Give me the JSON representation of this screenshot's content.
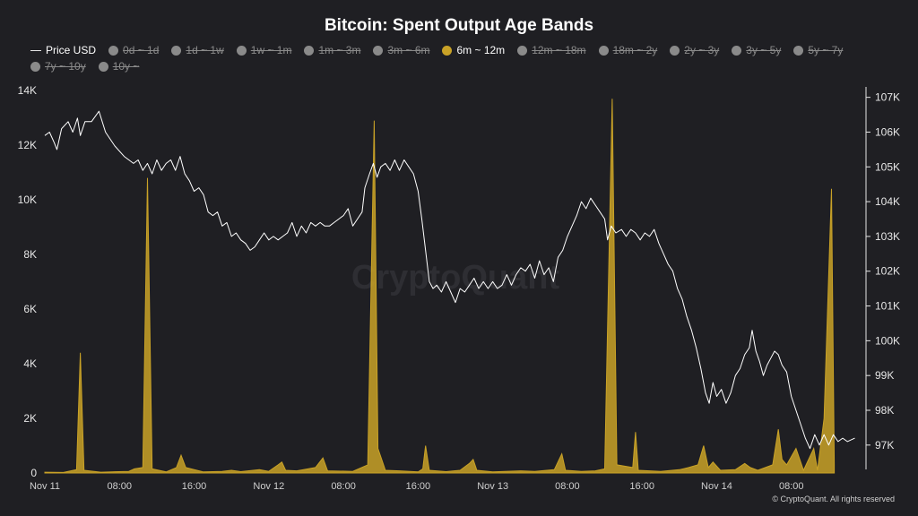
{
  "title": "Bitcoin: Spent Output Age Bands",
  "legend": [
    {
      "label": "Price USD",
      "kind": "line",
      "active": true
    },
    {
      "label": "0d ~ 1d",
      "kind": "dot",
      "active": false
    },
    {
      "label": "1d ~ 1w",
      "kind": "dot",
      "active": false
    },
    {
      "label": "1w ~ 1m",
      "kind": "dot",
      "active": false
    },
    {
      "label": "1m ~ 3m",
      "kind": "dot",
      "active": false
    },
    {
      "label": "3m ~ 6m",
      "kind": "dot",
      "active": false
    },
    {
      "label": "6m ~ 12m",
      "kind": "dot",
      "active": true
    },
    {
      "label": "12m ~ 18m",
      "kind": "dot",
      "active": false
    },
    {
      "label": "18m ~ 2y",
      "kind": "dot",
      "active": false
    },
    {
      "label": "2y ~ 3y",
      "kind": "dot",
      "active": false
    },
    {
      "label": "3y ~ 5y",
      "kind": "dot",
      "active": false
    },
    {
      "label": "5y ~ 7y",
      "kind": "dot",
      "active": false
    },
    {
      "label": "7y ~ 10y",
      "kind": "dot",
      "active": false
    },
    {
      "label": "10y ~",
      "kind": "dot",
      "active": false
    }
  ],
  "watermark": "CryptoQuant",
  "copyright": "© CryptoQuant. All rights reserved",
  "colors": {
    "background": "#1f1f23",
    "band": "#c9a227",
    "price": "#ffffff",
    "inactive": "#8a8a8a"
  },
  "chart_data": {
    "type": "area",
    "x_tick_labels": [
      "Nov 11",
      "08:00",
      "16:00",
      "Nov 12",
      "08:00",
      "16:00",
      "Nov 13",
      "08:00",
      "16:00",
      "Nov 14",
      "08:00"
    ],
    "x_range_hours": [
      0,
      88
    ],
    "x_tick_hours": [
      0,
      8,
      16,
      24,
      32,
      40,
      48,
      56,
      64,
      72,
      80
    ],
    "y_left": {
      "ticks": [
        "0",
        "2K",
        "4K",
        "6K",
        "8K",
        "10K",
        "12K",
        "14K"
      ],
      "range": [
        0,
        14000
      ]
    },
    "y_right": {
      "ticks": [
        "97K",
        "98K",
        "99K",
        "100K",
        "101K",
        "102K",
        "103K",
        "104K",
        "105K",
        "106K",
        "107K"
      ],
      "range": [
        96300,
        107300
      ]
    },
    "series": [
      {
        "name": "6m ~ 12m",
        "axis": "left",
        "kind": "area",
        "points": [
          [
            0,
            30
          ],
          [
            2,
            20
          ],
          [
            3.4,
            120
          ],
          [
            3.8,
            4400
          ],
          [
            4.2,
            100
          ],
          [
            6,
            30
          ],
          [
            9,
            60
          ],
          [
            9.6,
            150
          ],
          [
            10.5,
            200
          ],
          [
            11,
            10800
          ],
          [
            11.5,
            150
          ],
          [
            13,
            40
          ],
          [
            14.1,
            200
          ],
          [
            14.6,
            650
          ],
          [
            15.1,
            200
          ],
          [
            17,
            40
          ],
          [
            19,
            60
          ],
          [
            20,
            100
          ],
          [
            21,
            50
          ],
          [
            23,
            120
          ],
          [
            24,
            60
          ],
          [
            25,
            300
          ],
          [
            25.4,
            400
          ],
          [
            25.8,
            100
          ],
          [
            27,
            80
          ],
          [
            29,
            200
          ],
          [
            29.8,
            550
          ],
          [
            30.3,
            80
          ],
          [
            33,
            60
          ],
          [
            34.6,
            300
          ],
          [
            35.3,
            12900
          ],
          [
            35.7,
            900
          ],
          [
            36.5,
            100
          ],
          [
            38,
            80
          ],
          [
            40,
            40
          ],
          [
            40.5,
            150
          ],
          [
            40.8,
            1000
          ],
          [
            41.2,
            100
          ],
          [
            43,
            50
          ],
          [
            44.5,
            100
          ],
          [
            45.5,
            350
          ],
          [
            45.9,
            500
          ],
          [
            46.3,
            100
          ],
          [
            48,
            40
          ],
          [
            51,
            80
          ],
          [
            52.5,
            60
          ],
          [
            54.6,
            120
          ],
          [
            55.4,
            700
          ],
          [
            55.8,
            100
          ],
          [
            57.5,
            60
          ],
          [
            59,
            80
          ],
          [
            60,
            150
          ],
          [
            60.8,
            13700
          ],
          [
            61.3,
            300
          ],
          [
            63,
            200
          ],
          [
            63.3,
            1500
          ],
          [
            63.6,
            100
          ],
          [
            66,
            60
          ],
          [
            68,
            120
          ],
          [
            69,
            200
          ],
          [
            70,
            300
          ],
          [
            70.6,
            1000
          ],
          [
            71.1,
            200
          ],
          [
            71.6,
            400
          ],
          [
            72.4,
            100
          ],
          [
            74,
            120
          ],
          [
            75,
            350
          ],
          [
            75.6,
            200
          ],
          [
            76.4,
            100
          ],
          [
            78,
            300
          ],
          [
            78.6,
            1600
          ],
          [
            79,
            500
          ],
          [
            79.5,
            300
          ],
          [
            80.5,
            900
          ],
          [
            81.3,
            100
          ],
          [
            82.4,
            900
          ],
          [
            82.8,
            100
          ],
          [
            83.5,
            2000
          ],
          [
            84.3,
            10400
          ],
          [
            84.6,
            300
          ]
        ]
      },
      {
        "name": "Price USD",
        "axis": "right",
        "kind": "line",
        "points": [
          [
            0,
            105.9
          ],
          [
            0.5,
            106.0
          ],
          [
            1,
            105.7
          ],
          [
            1.3,
            105.5
          ],
          [
            1.8,
            106.1
          ],
          [
            2.5,
            106.3
          ],
          [
            3,
            106.0
          ],
          [
            3.5,
            106.4
          ],
          [
            3.8,
            105.9
          ],
          [
            4.3,
            106.3
          ],
          [
            5,
            106.3
          ],
          [
            5.8,
            106.6
          ],
          [
            6.5,
            106.0
          ],
          [
            7.5,
            105.6
          ],
          [
            8.5,
            105.3
          ],
          [
            9.5,
            105.1
          ],
          [
            10,
            105.2
          ],
          [
            10.5,
            104.9
          ],
          [
            11,
            105.1
          ],
          [
            11.5,
            104.8
          ],
          [
            12,
            105.2
          ],
          [
            12.5,
            104.9
          ],
          [
            13,
            105.1
          ],
          [
            13.5,
            105.2
          ],
          [
            14,
            104.9
          ],
          [
            14.5,
            105.3
          ],
          [
            15,
            104.8
          ],
          [
            15.5,
            104.6
          ],
          [
            16,
            104.3
          ],
          [
            16.5,
            104.4
          ],
          [
            17,
            104.2
          ],
          [
            17.5,
            103.7
          ],
          [
            18,
            103.6
          ],
          [
            18.5,
            103.7
          ],
          [
            19,
            103.3
          ],
          [
            19.5,
            103.4
          ],
          [
            20,
            103.0
          ],
          [
            20.5,
            103.1
          ],
          [
            21,
            102.9
          ],
          [
            21.5,
            102.8
          ],
          [
            22,
            102.6
          ],
          [
            22.5,
            102.7
          ],
          [
            23,
            102.9
          ],
          [
            23.5,
            103.1
          ],
          [
            24,
            102.9
          ],
          [
            24.5,
            103.0
          ],
          [
            25,
            102.9
          ],
          [
            25.5,
            103.0
          ],
          [
            26,
            103.1
          ],
          [
            26.5,
            103.4
          ],
          [
            27,
            103.0
          ],
          [
            27.5,
            103.3
          ],
          [
            28,
            103.1
          ],
          [
            28.5,
            103.4
          ],
          [
            29,
            103.3
          ],
          [
            29.5,
            103.4
          ],
          [
            30,
            103.3
          ],
          [
            30.5,
            103.3
          ],
          [
            31,
            103.4
          ],
          [
            31.5,
            103.5
          ],
          [
            32,
            103.6
          ],
          [
            32.5,
            103.8
          ],
          [
            33,
            103.3
          ],
          [
            33.5,
            103.5
          ],
          [
            34,
            103.7
          ],
          [
            34.3,
            104.4
          ],
          [
            34.8,
            104.8
          ],
          [
            35.2,
            105.1
          ],
          [
            35.6,
            104.7
          ],
          [
            36,
            105.0
          ],
          [
            36.5,
            105.1
          ],
          [
            37,
            104.9
          ],
          [
            37.5,
            105.2
          ],
          [
            38,
            104.9
          ],
          [
            38.5,
            105.2
          ],
          [
            39,
            105.0
          ],
          [
            39.5,
            104.8
          ],
          [
            40,
            104.3
          ],
          [
            40.4,
            103.5
          ],
          [
            40.8,
            102.6
          ],
          [
            41.2,
            101.7
          ],
          [
            41.6,
            101.5
          ],
          [
            42,
            101.6
          ],
          [
            42.5,
            101.4
          ],
          [
            43,
            101.7
          ],
          [
            43.5,
            101.4
          ],
          [
            44,
            101.1
          ],
          [
            44.5,
            101.5
          ],
          [
            45,
            101.4
          ],
          [
            45.5,
            101.6
          ],
          [
            46,
            101.8
          ],
          [
            46.5,
            101.5
          ],
          [
            47,
            101.7
          ],
          [
            47.5,
            101.5
          ],
          [
            48,
            101.7
          ],
          [
            48.5,
            101.5
          ],
          [
            49,
            101.6
          ],
          [
            49.5,
            101.9
          ],
          [
            50,
            101.6
          ],
          [
            50.5,
            101.9
          ],
          [
            51,
            102.1
          ],
          [
            51.5,
            102.0
          ],
          [
            52,
            102.2
          ],
          [
            52.5,
            101.8
          ],
          [
            53,
            102.3
          ],
          [
            53.5,
            101.9
          ],
          [
            54,
            102.1
          ],
          [
            54.5,
            101.7
          ],
          [
            55,
            102.4
          ],
          [
            55.5,
            102.6
          ],
          [
            56,
            103.0
          ],
          [
            56.5,
            103.3
          ],
          [
            57,
            103.6
          ],
          [
            57.5,
            104.0
          ],
          [
            58,
            103.8
          ],
          [
            58.5,
            104.1
          ],
          [
            59,
            103.9
          ],
          [
            59.5,
            103.7
          ],
          [
            60,
            103.5
          ],
          [
            60.3,
            102.9
          ],
          [
            60.7,
            103.3
          ],
          [
            61.2,
            103.1
          ],
          [
            61.8,
            103.2
          ],
          [
            62.3,
            103.0
          ],
          [
            62.8,
            103.2
          ],
          [
            63.3,
            103.1
          ],
          [
            63.8,
            102.9
          ],
          [
            64.3,
            103.1
          ],
          [
            64.8,
            103.0
          ],
          [
            65.3,
            103.2
          ],
          [
            65.8,
            102.8
          ],
          [
            66.3,
            102.5
          ],
          [
            66.8,
            102.2
          ],
          [
            67.3,
            102.0
          ],
          [
            67.8,
            101.5
          ],
          [
            68.3,
            101.2
          ],
          [
            68.8,
            100.7
          ],
          [
            69.3,
            100.3
          ],
          [
            69.8,
            99.8
          ],
          [
            70.3,
            99.2
          ],
          [
            70.8,
            98.5
          ],
          [
            71.2,
            98.2
          ],
          [
            71.6,
            98.8
          ],
          [
            72,
            98.4
          ],
          [
            72.5,
            98.6
          ],
          [
            73,
            98.2
          ],
          [
            73.5,
            98.5
          ],
          [
            74,
            99.0
          ],
          [
            74.5,
            99.2
          ],
          [
            75,
            99.6
          ],
          [
            75.5,
            99.8
          ],
          [
            75.8,
            100.3
          ],
          [
            76.2,
            99.7
          ],
          [
            76.6,
            99.4
          ],
          [
            77,
            99.0
          ],
          [
            77.4,
            99.3
          ],
          [
            77.8,
            99.5
          ],
          [
            78.2,
            99.7
          ],
          [
            78.6,
            99.6
          ],
          [
            79,
            99.3
          ],
          [
            79.5,
            99.1
          ],
          [
            80,
            98.4
          ],
          [
            80.5,
            98.0
          ],
          [
            81,
            97.6
          ],
          [
            81.5,
            97.2
          ],
          [
            82,
            96.9
          ],
          [
            82.5,
            97.3
          ],
          [
            83,
            97.0
          ],
          [
            83.5,
            97.3
          ],
          [
            84,
            97.0
          ],
          [
            84.5,
            97.3
          ],
          [
            85,
            97.1
          ],
          [
            85.5,
            97.2
          ],
          [
            86,
            97.1
          ],
          [
            86.8,
            97.2
          ]
        ]
      }
    ]
  }
}
